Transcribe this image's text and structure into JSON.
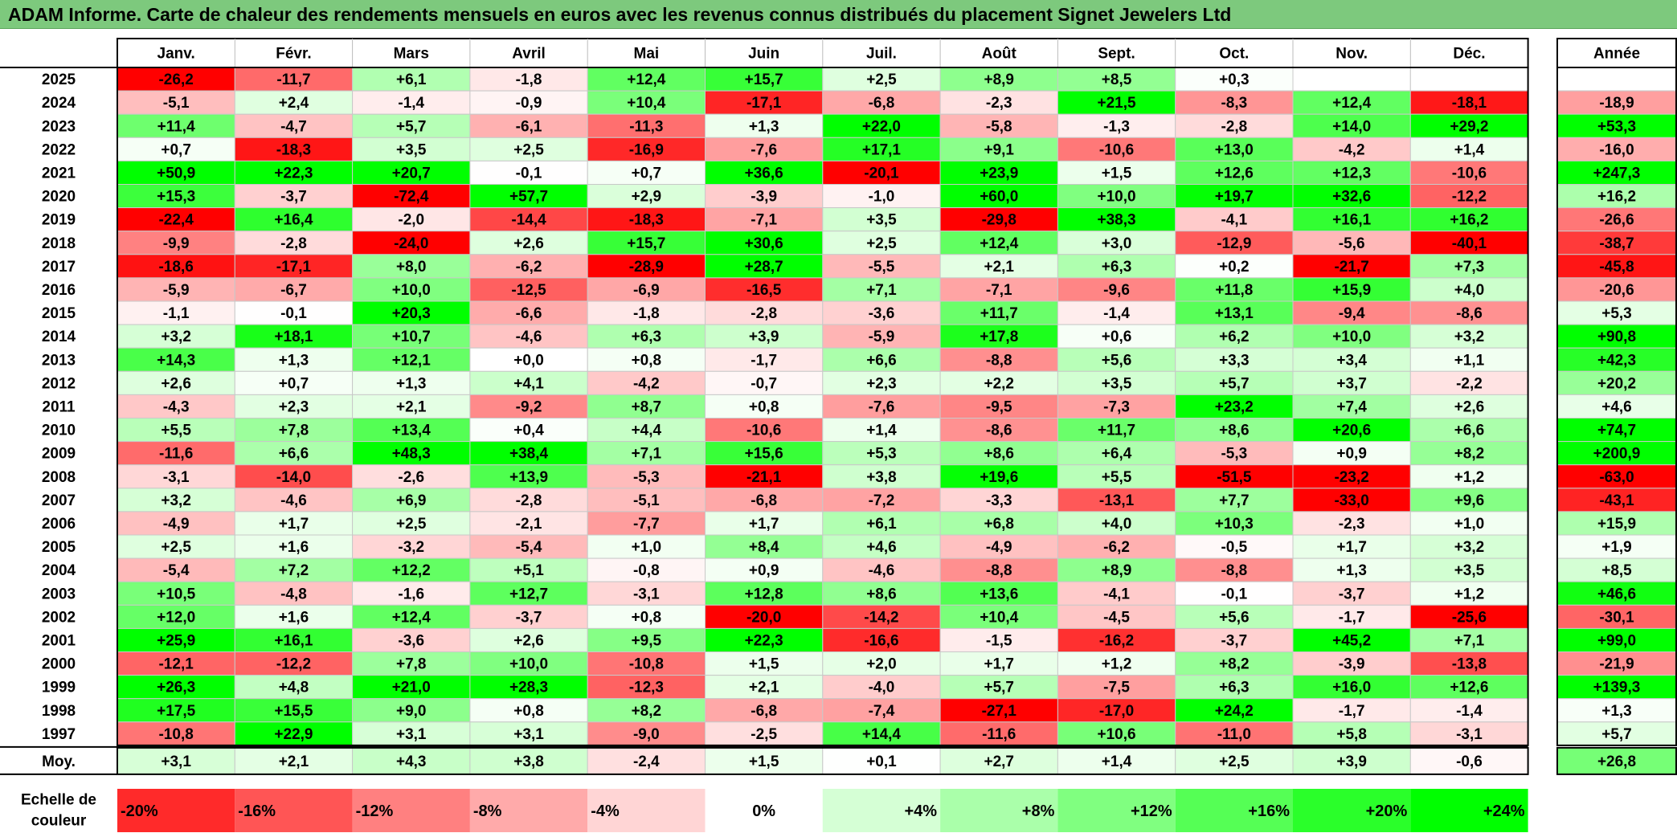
{
  "title": "ADAM Informe. Carte de chaleur des rendements mensuels en euros avec les revenus connus distribués du placement Signet Jewelers Ltd",
  "colors": {
    "title_bg": "#7dc97d",
    "max_green": "#00ff00",
    "max_red": "#ff0000",
    "neutral": "#ffffff"
  },
  "chart_data": {
    "type": "heatmap",
    "columns": [
      "Janv.",
      "Févr.",
      "Mars",
      "Avril",
      "Mai",
      "Juin",
      "Juil.",
      "Août",
      "Sept.",
      "Oct.",
      "Nov.",
      "Déc."
    ],
    "year_label": "Année",
    "average_label": "Moy.",
    "rows": [
      {
        "year": "2025",
        "values": [
          "-26,2",
          "-11,7",
          "+6,1",
          "-1,8",
          "+12,4",
          "+15,7",
          "+2,5",
          "+8,9",
          "+8,5",
          "+0,3",
          "",
          ""
        ],
        "annual": ""
      },
      {
        "year": "2024",
        "values": [
          "-5,1",
          "+2,4",
          "-1,4",
          "-0,9",
          "+10,4",
          "-17,1",
          "-6,8",
          "-2,3",
          "+21,5",
          "-8,3",
          "+12,4",
          "-18,1"
        ],
        "annual": "-18,9"
      },
      {
        "year": "2023",
        "values": [
          "+11,4",
          "-4,7",
          "+5,7",
          "-6,1",
          "-11,3",
          "+1,3",
          "+22,0",
          "-5,8",
          "-1,3",
          "-2,8",
          "+14,0",
          "+29,2"
        ],
        "annual": "+53,3"
      },
      {
        "year": "2022",
        "values": [
          "+0,7",
          "-18,3",
          "+3,5",
          "+2,5",
          "-16,9",
          "-7,6",
          "+17,1",
          "+9,1",
          "-10,6",
          "+13,0",
          "-4,2",
          "+1,4"
        ],
        "annual": "-16,0"
      },
      {
        "year": "2021",
        "values": [
          "+50,9",
          "+22,3",
          "+20,7",
          "-0,1",
          "+0,7",
          "+36,6",
          "-20,1",
          "+23,9",
          "+1,5",
          "+12,6",
          "+12,3",
          "-10,6"
        ],
        "annual": "+247,3"
      },
      {
        "year": "2020",
        "values": [
          "+15,3",
          "-3,7",
          "-72,4",
          "+57,7",
          "+2,9",
          "-3,9",
          "-1,0",
          "+60,0",
          "+10,0",
          "+19,7",
          "+32,6",
          "-12,2"
        ],
        "annual": "+16,2"
      },
      {
        "year": "2019",
        "values": [
          "-22,4",
          "+16,4",
          "-2,0",
          "-14,4",
          "-18,3",
          "-7,1",
          "+3,5",
          "-29,8",
          "+38,3",
          "-4,1",
          "+16,1",
          "+16,2"
        ],
        "annual": "-26,6"
      },
      {
        "year": "2018",
        "values": [
          "-9,9",
          "-2,8",
          "-24,0",
          "+2,6",
          "+15,7",
          "+30,6",
          "+2,5",
          "+12,4",
          "+3,0",
          "-12,9",
          "-5,6",
          "-40,1"
        ],
        "annual": "-38,7"
      },
      {
        "year": "2017",
        "values": [
          "-18,6",
          "-17,1",
          "+8,0",
          "-6,2",
          "-28,9",
          "+28,7",
          "-5,5",
          "+2,1",
          "+6,3",
          "+0,2",
          "-21,7",
          "+7,3"
        ],
        "annual": "-45,8"
      },
      {
        "year": "2016",
        "values": [
          "-5,9",
          "-6,7",
          "+10,0",
          "-12,5",
          "-6,9",
          "-16,5",
          "+7,1",
          "-7,1",
          "-9,6",
          "+11,8",
          "+15,9",
          "+4,0"
        ],
        "annual": "-20,6"
      },
      {
        "year": "2015",
        "values": [
          "-1,1",
          "-0,1",
          "+20,3",
          "-6,6",
          "-1,8",
          "-2,8",
          "-3,6",
          "+11,7",
          "-1,4",
          "+13,1",
          "-9,4",
          "-8,6"
        ],
        "annual": "+5,3"
      },
      {
        "year": "2014",
        "values": [
          "+3,2",
          "+18,1",
          "+10,7",
          "-4,6",
          "+6,3",
          "+3,9",
          "-5,9",
          "+17,8",
          "+0,6",
          "+6,2",
          "+10,0",
          "+3,2"
        ],
        "annual": "+90,8"
      },
      {
        "year": "2013",
        "values": [
          "+14,3",
          "+1,3",
          "+12,1",
          "+0,0",
          "+0,8",
          "-1,7",
          "+6,6",
          "-8,8",
          "+5,6",
          "+3,3",
          "+3,4",
          "+1,1"
        ],
        "annual": "+42,3"
      },
      {
        "year": "2012",
        "values": [
          "+2,6",
          "+0,7",
          "+1,3",
          "+4,1",
          "-4,2",
          "-0,7",
          "+2,3",
          "+2,2",
          "+3,5",
          "+5,7",
          "+3,7",
          "-2,2"
        ],
        "annual": "+20,2"
      },
      {
        "year": "2011",
        "values": [
          "-4,3",
          "+2,3",
          "+2,1",
          "-9,2",
          "+8,7",
          "+0,8",
          "-7,6",
          "-9,5",
          "-7,3",
          "+23,2",
          "+7,4",
          "+2,6"
        ],
        "annual": "+4,6"
      },
      {
        "year": "2010",
        "values": [
          "+5,5",
          "+7,8",
          "+13,4",
          "+0,4",
          "+4,4",
          "-10,6",
          "+1,4",
          "-8,6",
          "+11,7",
          "+8,6",
          "+20,6",
          "+6,6"
        ],
        "annual": "+74,7"
      },
      {
        "year": "2009",
        "values": [
          "-11,6",
          "+6,6",
          "+48,3",
          "+38,4",
          "+7,1",
          "+15,6",
          "+5,3",
          "+8,6",
          "+6,4",
          "-5,3",
          "+0,9",
          "+8,2"
        ],
        "annual": "+200,9"
      },
      {
        "year": "2008",
        "values": [
          "-3,1",
          "-14,0",
          "-2,6",
          "+13,9",
          "-5,3",
          "-21,1",
          "+3,8",
          "+19,6",
          "+5,5",
          "-51,5",
          "-23,2",
          "+1,2"
        ],
        "annual": "-63,0"
      },
      {
        "year": "2007",
        "values": [
          "+3,2",
          "-4,6",
          "+6,9",
          "-2,8",
          "-5,1",
          "-6,8",
          "-7,2",
          "-3,3",
          "-13,1",
          "+7,7",
          "-33,0",
          "+9,6"
        ],
        "annual": "-43,1"
      },
      {
        "year": "2006",
        "values": [
          "-4,9",
          "+1,7",
          "+2,5",
          "-2,1",
          "-7,7",
          "+1,7",
          "+6,1",
          "+6,8",
          "+4,0",
          "+10,3",
          "-2,3",
          "+1,0"
        ],
        "annual": "+15,9"
      },
      {
        "year": "2005",
        "values": [
          "+2,5",
          "+1,6",
          "-3,2",
          "-5,4",
          "+1,0",
          "+8,4",
          "+4,6",
          "-4,9",
          "-6,2",
          "-0,5",
          "+1,7",
          "+3,2"
        ],
        "annual": "+1,9"
      },
      {
        "year": "2004",
        "values": [
          "-5,4",
          "+7,2",
          "+12,2",
          "+5,1",
          "-0,8",
          "+0,9",
          "-4,6",
          "-8,8",
          "+8,9",
          "-8,8",
          "+1,3",
          "+3,5"
        ],
        "annual": "+8,5"
      },
      {
        "year": "2003",
        "values": [
          "+10,5",
          "-4,8",
          "-1,6",
          "+12,7",
          "-3,1",
          "+12,8",
          "+8,6",
          "+13,6",
          "-4,1",
          "-0,1",
          "-3,7",
          "+1,2"
        ],
        "annual": "+46,6"
      },
      {
        "year": "2002",
        "values": [
          "+12,0",
          "+1,6",
          "+12,4",
          "-3,7",
          "+0,8",
          "-20,0",
          "-14,2",
          "+10,4",
          "-4,5",
          "+5,6",
          "-1,7",
          "-25,6"
        ],
        "annual": "-30,1"
      },
      {
        "year": "2001",
        "values": [
          "+25,9",
          "+16,1",
          "-3,6",
          "+2,6",
          "+9,5",
          "+22,3",
          "-16,6",
          "-1,5",
          "-16,2",
          "-3,7",
          "+45,2",
          "+7,1"
        ],
        "annual": "+99,0"
      },
      {
        "year": "2000",
        "values": [
          "-12,1",
          "-12,2",
          "+7,8",
          "+10,0",
          "-10,8",
          "+1,5",
          "+2,0",
          "+1,7",
          "+1,2",
          "+8,2",
          "-3,9",
          "-13,8"
        ],
        "annual": "-21,9"
      },
      {
        "year": "1999",
        "values": [
          "+26,3",
          "+4,8",
          "+21,0",
          "+28,3",
          "-12,3",
          "+2,1",
          "-4,0",
          "+5,7",
          "-7,5",
          "+6,3",
          "+16,0",
          "+12,6"
        ],
        "annual": "+139,3"
      },
      {
        "year": "1998",
        "values": [
          "+17,5",
          "+15,5",
          "+9,0",
          "+0,8",
          "+8,2",
          "-6,8",
          "-7,4",
          "-27,1",
          "-17,0",
          "+24,2",
          "-1,7",
          "-1,4"
        ],
        "annual": "+1,3"
      },
      {
        "year": "1997",
        "values": [
          "-10,8",
          "+22,9",
          "+3,1",
          "+3,1",
          "-9,0",
          "-2,5",
          "+14,4",
          "-11,6",
          "+10,6",
          "-11,0",
          "+5,8",
          "-3,1"
        ],
        "annual": "+5,7"
      }
    ],
    "averages": [
      "+3,1",
      "+2,1",
      "+4,3",
      "+3,8",
      "-2,4",
      "+1,5",
      "+0,1",
      "+2,7",
      "+1,4",
      "+2,5",
      "+3,9",
      "-0,6"
    ],
    "average_annual": "+26,8",
    "scale": {
      "label_line1": "Echelle de",
      "label_line2": "couleur",
      "entries": [
        {
          "label": "-20%",
          "value": -20
        },
        {
          "label": "-16%",
          "value": -16
        },
        {
          "label": "-12%",
          "value": -12
        },
        {
          "label": "-8%",
          "value": -8
        },
        {
          "label": "-4%",
          "value": -4
        },
        {
          "label": "0%",
          "value": 0
        },
        {
          "label": "+4%",
          "value": 4
        },
        {
          "label": "+8%",
          "value": 8
        },
        {
          "label": "+12%",
          "value": 12
        },
        {
          "label": "+16%",
          "value": 16
        },
        {
          "label": "+20%",
          "value": 20
        },
        {
          "label": "+24%",
          "value": 24
        }
      ]
    }
  }
}
